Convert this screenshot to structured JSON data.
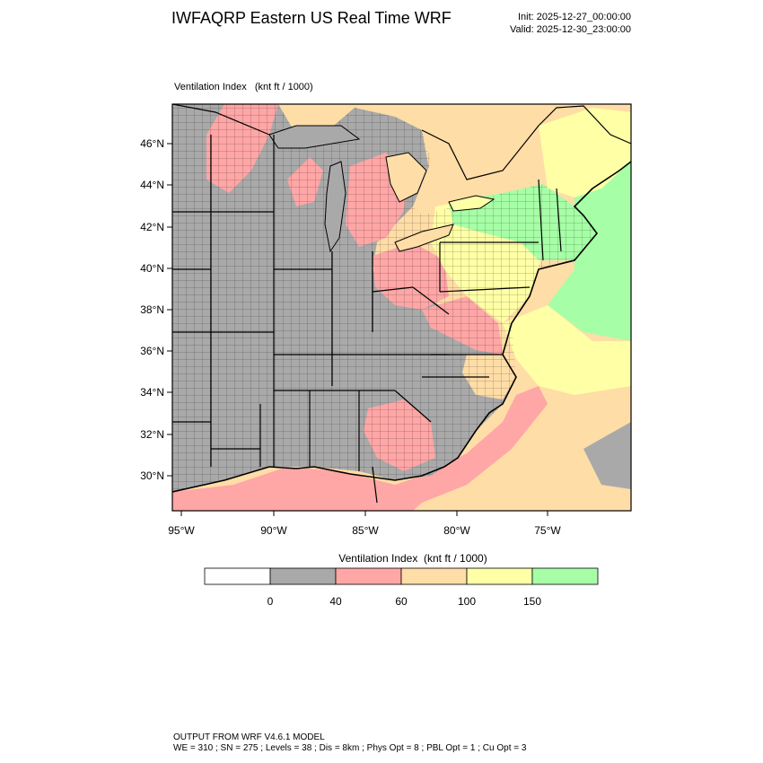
{
  "header": {
    "title": "IWFAQRP Eastern US Real Time WRF",
    "init": "Init: 2025-12-27_00:00:00",
    "valid": "Valid: 2025-12-30_23:00:00"
  },
  "map": {
    "field_label": "Ventilation Index   (knt ft / 1000)",
    "lat_labels": [
      "46°N",
      "44°N",
      "42°N",
      "40°N",
      "38°N",
      "36°N",
      "34°N",
      "32°N",
      "30°N"
    ],
    "lon_labels": [
      "95°W",
      "90°W",
      "85°W",
      "80°W",
      "75°W"
    ],
    "region_colors": {
      "lt40": "#a9a9a9",
      "40_60": "#ffa6a6",
      "60_100": "#ffdda6",
      "100_150": "#ffffa6",
      "ge150": "#a6ffa6"
    }
  },
  "colorbar": {
    "title": "Ventilation Index  (knt ft / 1000)",
    "colors": [
      "#ffffff",
      "#a9a9a9",
      "#ffa6a6",
      "#ffdda6",
      "#ffffa6",
      "#a6ffa6"
    ],
    "ticks": [
      "0",
      "40",
      "60",
      "100",
      "150"
    ]
  },
  "footer": {
    "line1": "OUTPUT FROM WRF V4.6.1 MODEL",
    "line2": "WE = 310 ; SN = 275 ; Levels = 38 ; Dis = 8km ; Phys Opt = 8 ; PBL Opt = 1 ; Cu Opt = 3"
  }
}
